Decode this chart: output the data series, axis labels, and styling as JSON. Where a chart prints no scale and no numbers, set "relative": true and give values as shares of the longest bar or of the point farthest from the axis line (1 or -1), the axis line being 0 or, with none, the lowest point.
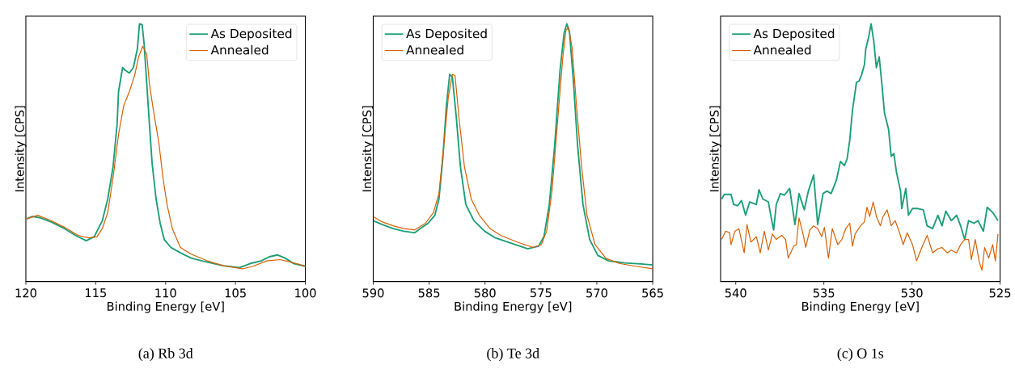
{
  "chart_data": [
    {
      "type": "line",
      "title": "(a) Rb 3d",
      "xlabel": "Binding Energy [eV]",
      "ylabel": "Intensity [CPS]",
      "relative": true,
      "xlim": [
        120,
        100
      ],
      "xticks": [
        120,
        115,
        110,
        105,
        100
      ],
      "legend": "top right",
      "series": [
        {
          "name": "As Deposited",
          "color": "#1b9e77",
          "x": [
            120.0,
            119.54,
            118.96,
            118.19,
            117.23,
            116.45,
            115.68,
            115.11,
            114.53,
            114.14,
            113.76,
            113.47,
            113.37,
            113.08,
            112.89,
            112.6,
            112.31,
            112.02,
            111.87,
            111.68,
            111.54,
            111.35,
            111.16,
            110.96,
            110.68,
            110.39,
            110.1,
            109.62,
            108.94,
            108.17,
            107.02,
            105.86,
            104.7,
            103.93,
            103.16,
            102.58,
            102.0,
            101.43,
            100.85,
            100.0
          ],
          "values": [
            0.242,
            0.252,
            0.247,
            0.231,
            0.205,
            0.179,
            0.158,
            0.174,
            0.236,
            0.32,
            0.445,
            0.611,
            0.736,
            0.83,
            0.82,
            0.809,
            0.83,
            0.903,
            1.0,
            0.997,
            0.924,
            0.768,
            0.611,
            0.455,
            0.32,
            0.226,
            0.163,
            0.132,
            0.111,
            0.091,
            0.075,
            0.061,
            0.054,
            0.07,
            0.08,
            0.096,
            0.103,
            0.09,
            0.07,
            0.059
          ]
        },
        {
          "name": "Annealed",
          "color": "#d95f02",
          "x": [
            120.0,
            119.15,
            118.19,
            117.23,
            116.26,
            115.49,
            114.91,
            114.53,
            114.14,
            113.76,
            113.37,
            112.99,
            112.6,
            112.22,
            111.93,
            111.64,
            111.35,
            111.16,
            110.87,
            110.48,
            110.19,
            109.9,
            109.52,
            108.94,
            108.17,
            107.02,
            105.86,
            104.51,
            103.74,
            102.77,
            101.81,
            101.04,
            100.0
          ],
          "values": [
            0.242,
            0.257,
            0.236,
            0.21,
            0.179,
            0.169,
            0.174,
            0.205,
            0.268,
            0.403,
            0.57,
            0.684,
            0.736,
            0.799,
            0.872,
            0.913,
            0.882,
            0.768,
            0.663,
            0.538,
            0.403,
            0.299,
            0.205,
            0.132,
            0.106,
            0.08,
            0.061,
            0.049,
            0.059,
            0.08,
            0.085,
            0.075,
            0.059
          ]
        }
      ]
    },
    {
      "type": "line",
      "title": "(b) Te 3d",
      "xlabel": "Binding Energy [eV]",
      "ylabel": "Intensity [CPS]",
      "relative": true,
      "xlim": [
        590,
        565
      ],
      "xticks": [
        590,
        585,
        580,
        575,
        570,
        565
      ],
      "legend": "top left",
      "series": [
        {
          "name": "As Deposited",
          "color": "#1b9e77",
          "x": [
            590.0,
            589.18,
            588.22,
            587.26,
            586.29,
            585.81,
            585.09,
            584.49,
            584.12,
            583.76,
            583.45,
            583.16,
            582.92,
            582.56,
            582.2,
            581.72,
            580.99,
            580.03,
            579.07,
            577.62,
            576.18,
            575.21,
            574.73,
            574.25,
            573.77,
            573.29,
            572.92,
            572.68,
            572.44,
            572.08,
            571.72,
            571.24,
            570.64,
            569.91,
            568.95,
            567.51,
            566.06,
            565.0
          ],
          "values": [
            0.236,
            0.221,
            0.205,
            0.195,
            0.189,
            0.205,
            0.226,
            0.257,
            0.32,
            0.486,
            0.684,
            0.804,
            0.794,
            0.632,
            0.445,
            0.299,
            0.236,
            0.195,
            0.169,
            0.148,
            0.127,
            0.137,
            0.174,
            0.299,
            0.528,
            0.82,
            0.966,
            1.0,
            0.966,
            0.768,
            0.528,
            0.299,
            0.163,
            0.101,
            0.08,
            0.072,
            0.068,
            0.064
          ]
        },
        {
          "name": "Annealed",
          "color": "#d95f02",
          "x": [
            590.0,
            589.18,
            588.22,
            587.26,
            586.29,
            585.33,
            584.61,
            584.12,
            583.69,
            583.28,
            582.92,
            582.68,
            582.32,
            581.84,
            581.23,
            580.51,
            579.55,
            578.59,
            577.14,
            575.69,
            574.97,
            574.49,
            574.01,
            573.53,
            573.04,
            572.76,
            572.52,
            572.2,
            571.84,
            571.36,
            570.88,
            570.16,
            569.19,
            567.99,
            566.54,
            565.0
          ],
          "values": [
            0.252,
            0.231,
            0.216,
            0.205,
            0.2,
            0.226,
            0.268,
            0.341,
            0.528,
            0.716,
            0.804,
            0.799,
            0.632,
            0.445,
            0.32,
            0.257,
            0.205,
            0.179,
            0.153,
            0.132,
            0.143,
            0.195,
            0.351,
            0.611,
            0.872,
            0.976,
            0.986,
            0.903,
            0.695,
            0.445,
            0.257,
            0.143,
            0.09,
            0.07,
            0.059,
            0.049
          ]
        }
      ]
    },
    {
      "type": "line",
      "title": "(c) O 1s",
      "xlabel": "Binding Energy [eV]",
      "ylabel": "Intensity [CPS]",
      "relative": true,
      "xlim": [
        540.86,
        525
      ],
      "xticks": [
        540,
        535,
        530,
        525
      ],
      "legend": "top left",
      "series": [
        {
          "name": "As Deposited",
          "color": "#1b9e77",
          "x": [
            540.8,
            540.65,
            540.27,
            540.12,
            539.89,
            539.67,
            539.44,
            539.21,
            538.83,
            538.68,
            538.46,
            538.15,
            538.0,
            537.85,
            537.7,
            537.47,
            537.24,
            536.94,
            536.64,
            536.41,
            536.11,
            535.88,
            535.58,
            535.35,
            535.05,
            534.82,
            534.59,
            534.29,
            534.06,
            533.83,
            533.68,
            533.53,
            533.38,
            533.15,
            533.0,
            532.85,
            532.7,
            532.62,
            532.47,
            532.32,
            532.17,
            532.02,
            531.86,
            531.71,
            531.56,
            531.33,
            531.18,
            531.03,
            530.88,
            530.65,
            530.58,
            530.35,
            530.2,
            529.97,
            529.67,
            529.36,
            529.14,
            528.83,
            528.53,
            528.3,
            528.08,
            527.77,
            527.47,
            527.24,
            527.01,
            526.79,
            526.48,
            526.25,
            525.95,
            525.73,
            525.42,
            525.12
          ],
          "values": [
            0.32,
            0.338,
            0.338,
            0.299,
            0.294,
            0.314,
            0.257,
            0.309,
            0.299,
            0.356,
            0.32,
            0.309,
            0.252,
            0.2,
            0.299,
            0.341,
            0.335,
            0.361,
            0.221,
            0.341,
            0.278,
            0.351,
            0.413,
            0.221,
            0.341,
            0.351,
            0.341,
            0.393,
            0.466,
            0.45,
            0.476,
            0.549,
            0.663,
            0.773,
            0.778,
            0.804,
            0.841,
            0.903,
            0.945,
            1.0,
            0.934,
            0.83,
            0.872,
            0.768,
            0.653,
            0.591,
            0.486,
            0.497,
            0.424,
            0.351,
            0.283,
            0.361,
            0.257,
            0.283,
            0.283,
            0.278,
            0.216,
            0.205,
            0.257,
            0.216,
            0.273,
            0.236,
            0.257,
            0.216,
            0.163,
            0.236,
            0.226,
            0.236,
            0.195,
            0.288,
            0.268,
            0.236
          ]
        },
        {
          "name": "Annealed",
          "color": "#d95f02",
          "x": [
            540.8,
            540.58,
            540.35,
            540.27,
            540.05,
            539.82,
            539.52,
            539.36,
            539.14,
            538.83,
            538.61,
            538.38,
            538.15,
            537.92,
            537.7,
            537.39,
            537.17,
            537.02,
            536.71,
            536.56,
            536.41,
            536.18,
            536.03,
            535.8,
            535.58,
            535.35,
            535.12,
            534.97,
            534.74,
            534.52,
            534.21,
            533.98,
            533.76,
            533.53,
            533.38,
            533.23,
            532.92,
            532.7,
            532.55,
            532.4,
            532.2,
            532.02,
            531.79,
            531.64,
            531.41,
            531.18,
            530.955,
            530.73,
            530.5,
            530.27,
            529.97,
            529.74,
            529.44,
            529.14,
            528.83,
            528.53,
            528.3,
            528.0,
            527.77,
            527.47,
            527.24,
            527.01,
            526.79,
            526.63,
            526.41,
            526.18,
            526.03,
            525.88,
            525.65,
            525.42,
            525.27,
            525.12
          ],
          "values": [
            0.163,
            0.195,
            0.19,
            0.143,
            0.195,
            0.205,
            0.111,
            0.221,
            0.153,
            0.174,
            0.111,
            0.195,
            0.122,
            0.184,
            0.163,
            0.179,
            0.163,
            0.091,
            0.137,
            0.143,
            0.247,
            0.184,
            0.132,
            0.2,
            0.216,
            0.205,
            0.174,
            0.21,
            0.091,
            0.205,
            0.143,
            0.163,
            0.205,
            0.226,
            0.137,
            0.184,
            0.216,
            0.231,
            0.288,
            0.252,
            0.309,
            0.252,
            0.216,
            0.252,
            0.278,
            0.216,
            0.236,
            0.195,
            0.143,
            0.189,
            0.143,
            0.08,
            0.132,
            0.179,
            0.111,
            0.127,
            0.132,
            0.111,
            0.122,
            0.111,
            0.143,
            0.163,
            0.163,
            0.085,
            0.163,
            0.075,
            0.044,
            0.132,
            0.091,
            0.143,
            0.08,
            0.184
          ]
        }
      ]
    }
  ]
}
